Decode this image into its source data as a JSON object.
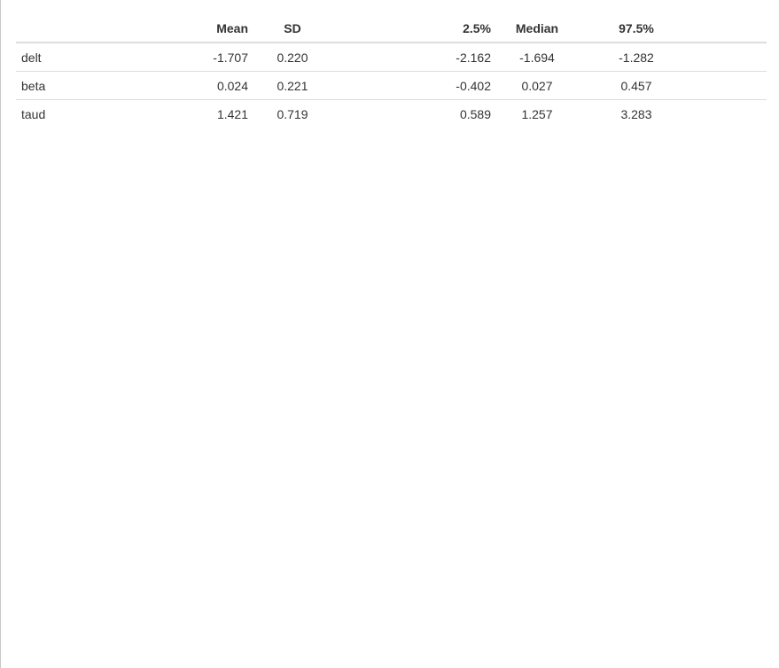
{
  "table": {
    "headers": [
      "",
      "Mean",
      "SD",
      "2.5%",
      "Median",
      "97.5%"
    ],
    "rows": [
      {
        "name": "delt",
        "mean": "-1.707",
        "sd": "0.220",
        "q025": "-2.162",
        "median": "-1.694",
        "q975": "-1.282"
      },
      {
        "name": "beta",
        "mean": "0.024",
        "sd": "0.221",
        "q025": "-0.402",
        "median": "0.027",
        "q975": "0.457"
      },
      {
        "name": "taud",
        "mean": "1.421",
        "sd": "0.719",
        "q025": "0.589",
        "median": "1.257",
        "q975": "3.283"
      }
    ]
  }
}
